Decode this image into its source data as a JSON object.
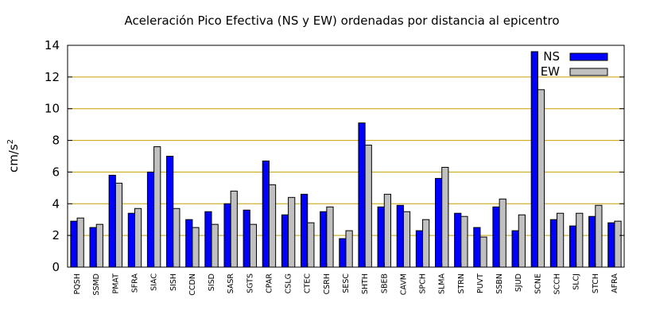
{
  "chart_data": {
    "type": "bar",
    "title": "Aceleración Pico Efectiva (NS y EW) ordenadas por distancia al epicentro",
    "ylabel_base": "cm/s",
    "ylabel_sup": "2",
    "ylim": [
      0,
      14
    ],
    "yticks": [
      "0",
      "2",
      "4",
      "6",
      "8",
      "10",
      "12",
      "14"
    ],
    "grid": "horizontal",
    "legend_position": "top-right",
    "categories": [
      "PQSH",
      "SSMD",
      "PMAT",
      "SFRA",
      "SIAC",
      "SISH",
      "CCDN",
      "SISD",
      "SASR",
      "SGTS",
      "CPAR",
      "CSLG",
      "CTEC",
      "CSRH",
      "SESC",
      "SHTH",
      "SBEB",
      "CAVM",
      "SPCH",
      "SLMA",
      "STRN",
      "PUVT",
      "SSBN",
      "SJUD",
      "SCNE",
      "SCCH",
      "SLCJ",
      "STCH",
      "AFRA"
    ],
    "series": [
      {
        "name": "NS",
        "color": "#0000ff",
        "values": [
          2.9,
          2.5,
          5.8,
          3.4,
          6.0,
          7.0,
          3.0,
          3.5,
          4.0,
          3.6,
          6.7,
          3.3,
          4.6,
          3.5,
          1.8,
          9.1,
          3.8,
          3.9,
          2.3,
          5.6,
          3.4,
          2.5,
          3.8,
          2.3,
          13.6,
          3.0,
          2.6,
          3.2,
          2.8
        ]
      },
      {
        "name": "EW",
        "color": "#c0c0c0",
        "values": [
          3.1,
          2.7,
          5.3,
          3.7,
          7.6,
          3.7,
          2.5,
          2.7,
          4.8,
          2.7,
          5.2,
          4.4,
          2.8,
          3.8,
          2.3,
          7.7,
          4.6,
          3.5,
          3.0,
          6.3,
          3.2,
          1.9,
          4.3,
          3.3,
          11.2,
          3.4,
          3.4,
          3.9,
          2.9
        ]
      }
    ]
  }
}
